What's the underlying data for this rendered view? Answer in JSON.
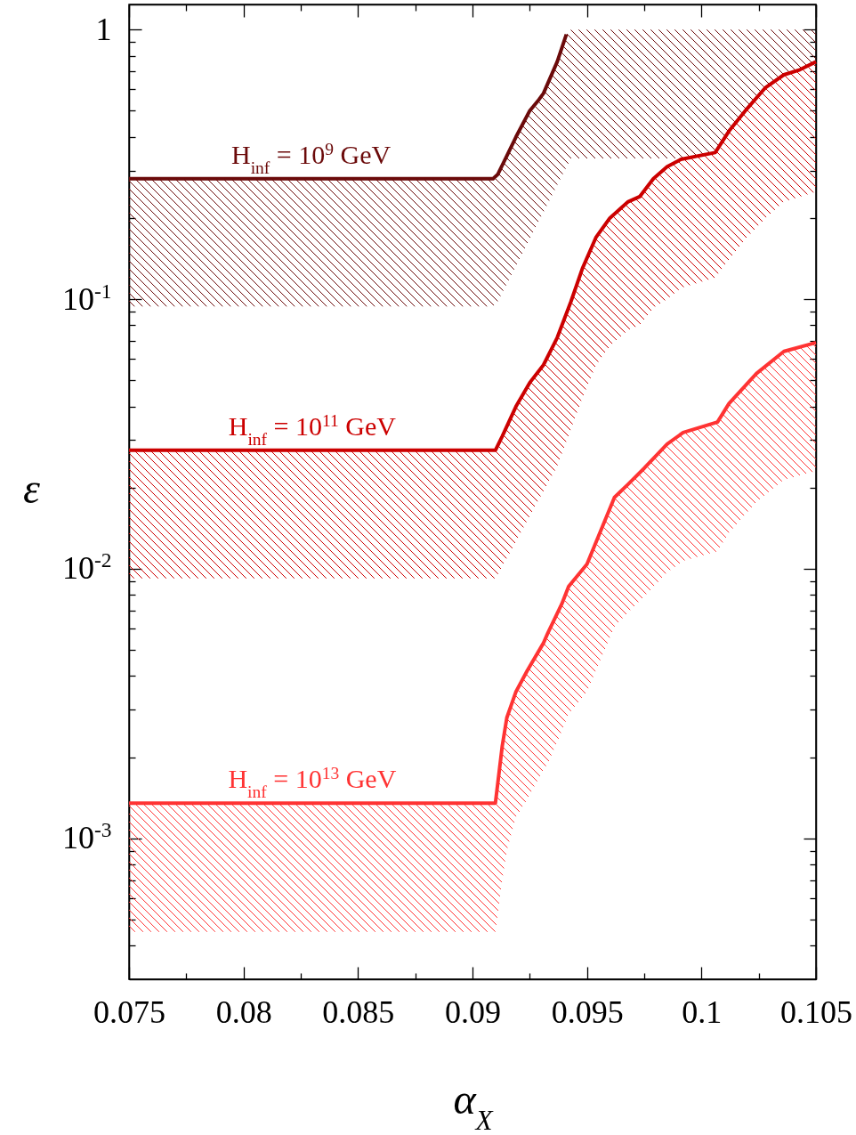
{
  "chart_data": {
    "type": "line",
    "xlabel": "α$_{X}$",
    "ylabel": "ε",
    "log": "y",
    "xlim": [
      0.075,
      0.105
    ],
    "ylim": [
      0.0003,
      1.24
    ],
    "xticks": [
      0.075,
      {
        "value": 0.0775,
        "label": null
      },
      0.08,
      {
        "value": 0.0825,
        "label": null
      },
      0.085,
      {
        "value": 0.0875,
        "label": null
      },
      0.09,
      {
        "value": 0.0925,
        "label": null
      },
      0.095,
      {
        "value": 0.0975,
        "label": null
      },
      0.1,
      {
        "value": 0.1025,
        "label": null
      },
      0.105
    ],
    "yticks": [
      {
        "value": 0.0004,
        "label": null
      },
      {
        "value": 0.0005,
        "label": null
      },
      {
        "value": 0.0006,
        "label": null
      },
      {
        "value": 0.0007,
        "label": null
      },
      {
        "value": 0.0008,
        "label": null
      },
      {
        "value": 0.0009,
        "label": null
      },
      {
        "value": 0.001,
        "label": "10$^{-3}$"
      },
      {
        "value": 0.002,
        "label": null
      },
      {
        "value": 0.003,
        "label": null
      },
      {
        "value": 0.004,
        "label": null
      },
      {
        "value": 0.005,
        "label": null
      },
      {
        "value": 0.006,
        "label": null
      },
      {
        "value": 0.007,
        "label": null
      },
      {
        "value": 0.008,
        "label": null
      },
      {
        "value": 0.009,
        "label": null
      },
      {
        "value": 0.01,
        "label": "10$^{-2}$"
      },
      {
        "value": 0.02,
        "label": null
      },
      {
        "value": 0.03,
        "label": null
      },
      {
        "value": 0.04,
        "label": null
      },
      {
        "value": 0.05,
        "label": null
      },
      {
        "value": 0.06,
        "label": null
      },
      {
        "value": 0.07,
        "label": null
      },
      {
        "value": 0.08,
        "label": null
      },
      {
        "value": 0.09,
        "label": null
      },
      {
        "value": 0.1,
        "label": "10$^{-1}$"
      },
      {
        "value": 0.2,
        "label": null
      },
      {
        "value": 0.3,
        "label": null
      },
      {
        "value": 0.4,
        "label": null
      },
      {
        "value": 0.5,
        "label": null
      },
      {
        "value": 0.6,
        "label": null
      },
      {
        "value": 0.7,
        "label": null
      },
      {
        "value": 0.8,
        "label": null
      },
      {
        "value": 0.9,
        "label": null
      },
      1
    ],
    "series": [
      {
        "name": "H$_{inf}$ = 10$^{9}$ GeV",
        "color": "#6b0a0a",
        "x": [
          0.075,
          0.0909,
          0.0911,
          0.0915,
          0.0919,
          0.0925,
          0.0929,
          0.0931,
          0.0937,
          0.0941,
          0.0943,
          0.105
        ],
        "values": [
          0.28,
          0.28,
          0.29,
          0.34,
          0.4,
          0.5,
          0.55,
          0.58,
          0.76,
          0.96,
          null,
          null
        ],
        "lower": [
          0.094,
          0.094,
          0.098,
          0.114,
          0.133,
          0.167,
          0.195,
          0.21,
          0.265,
          0.309,
          0.333,
          0.333
        ],
        "upper": [
          0.28,
          0.28,
          0.29,
          0.34,
          0.4,
          0.5,
          0.55,
          0.58,
          0.76,
          0.96,
          1,
          1
        ]
      },
      {
        "name": "H$_{inf}$ = 10$^{11}$ GeV",
        "color": "#cc0000",
        "x": [
          0.075,
          0.091,
          0.0913,
          0.0919,
          0.0925,
          0.0931,
          0.0937,
          0.0943,
          0.0948,
          0.0954,
          0.096,
          0.0968,
          0.0973,
          0.0979,
          0.0985,
          0.0991,
          0.1006,
          0.1012,
          0.102,
          0.1028,
          0.1036,
          0.1043,
          0.105
        ],
        "values": [
          0.0275,
          0.0275,
          0.031,
          0.04,
          0.049,
          0.057,
          0.072,
          0.098,
          0.13,
          0.17,
          0.2,
          0.23,
          0.24,
          0.28,
          0.31,
          0.33,
          0.35,
          0.42,
          0.51,
          0.61,
          0.68,
          0.71,
          0.76
        ],
        "lower": [
          0.0092,
          0.0092,
          0.0102,
          0.0126,
          0.0157,
          0.0194,
          0.024,
          0.033,
          0.043,
          0.057,
          0.067,
          0.077,
          0.08,
          0.093,
          0.1,
          0.11,
          0.12,
          0.14,
          0.17,
          0.2,
          0.23,
          0.24,
          0.25
        ],
        "upper": [
          0.0275,
          0.0275,
          0.031,
          0.04,
          0.049,
          0.057,
          0.072,
          0.098,
          0.13,
          0.17,
          0.2,
          0.23,
          0.24,
          0.28,
          0.31,
          0.33,
          0.35,
          0.42,
          0.51,
          0.61,
          0.68,
          0.71,
          0.76
        ]
      },
      {
        "name": "H$_{inf}$ = 10$^{13}$ GeV",
        "color": "#ff3333",
        "x": [
          0.075,
          0.091,
          0.0913,
          0.0915,
          0.0919,
          0.0924,
          0.0931,
          0.0933,
          0.0939,
          0.0942,
          0.095,
          0.0962,
          0.0968,
          0.0975,
          0.0985,
          0.0992,
          0.1007,
          0.1012,
          0.1024,
          0.1036,
          0.105
        ],
        "values": [
          0.00135,
          0.00135,
          0.0022,
          0.0028,
          0.0035,
          0.0042,
          0.0053,
          0.0058,
          0.0074,
          0.0086,
          0.0104,
          0.0184,
          0.0206,
          0.0236,
          0.029,
          0.032,
          0.035,
          0.041,
          0.053,
          0.064,
          0.069
        ],
        "lower": [
          0.00045,
          0.00045,
          0.0007,
          0.0009,
          0.0012,
          0.0014,
          0.0018,
          0.0019,
          0.0025,
          0.0029,
          0.0035,
          0.0061,
          0.0069,
          0.0079,
          0.0097,
          0.0107,
          0.0116,
          0.0136,
          0.0177,
          0.0214,
          0.023
        ],
        "upper": [
          0.00135,
          0.00135,
          0.0022,
          0.0028,
          0.0035,
          0.0042,
          0.0053,
          0.0058,
          0.0074,
          0.0086,
          0.0104,
          0.0184,
          0.0206,
          0.0236,
          0.029,
          0.032,
          0.035,
          0.041,
          0.053,
          0.064,
          0.069
        ]
      }
    ]
  }
}
